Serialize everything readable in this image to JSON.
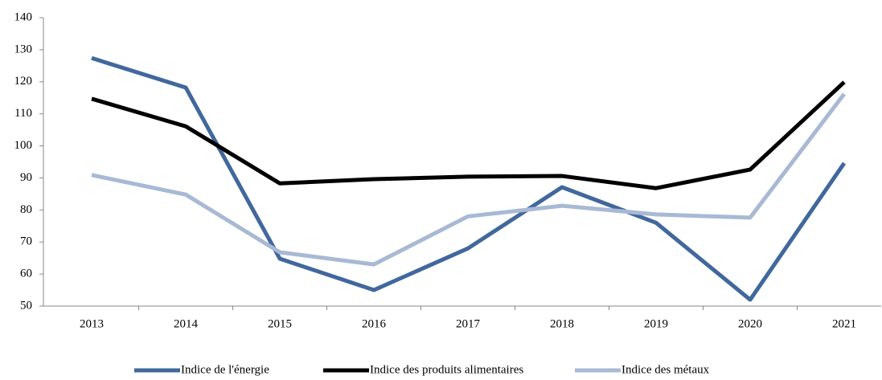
{
  "chart_data": {
    "type": "line",
    "categories": [
      "2013",
      "2014",
      "2015",
      "2016",
      "2017",
      "2018",
      "2019",
      "2020",
      "2021"
    ],
    "series": [
      {
        "name": "Indice de l'énergie",
        "color": "#41689c",
        "values": [
          127.4,
          118.2,
          64.8,
          55,
          68,
          87.1,
          76,
          52,
          94.6
        ]
      },
      {
        "name": "Indice des produits alimentaires",
        "color": "#000000",
        "values": [
          114.7,
          106.1,
          88.3,
          89.6,
          90.4,
          90.6,
          86.8,
          92.6,
          119.9
        ]
      },
      {
        "name": "Indice des métaux",
        "color": "#a8b9d4",
        "values": [
          90.9,
          84.8,
          66.8,
          63,
          78,
          81.3,
          78.6,
          77.6,
          116.2
        ]
      }
    ],
    "ylim": [
      50,
      140
    ],
    "yticks": [
      50,
      60,
      70,
      80,
      90,
      100,
      110,
      120,
      130,
      140
    ],
    "legend": "bottom"
  }
}
